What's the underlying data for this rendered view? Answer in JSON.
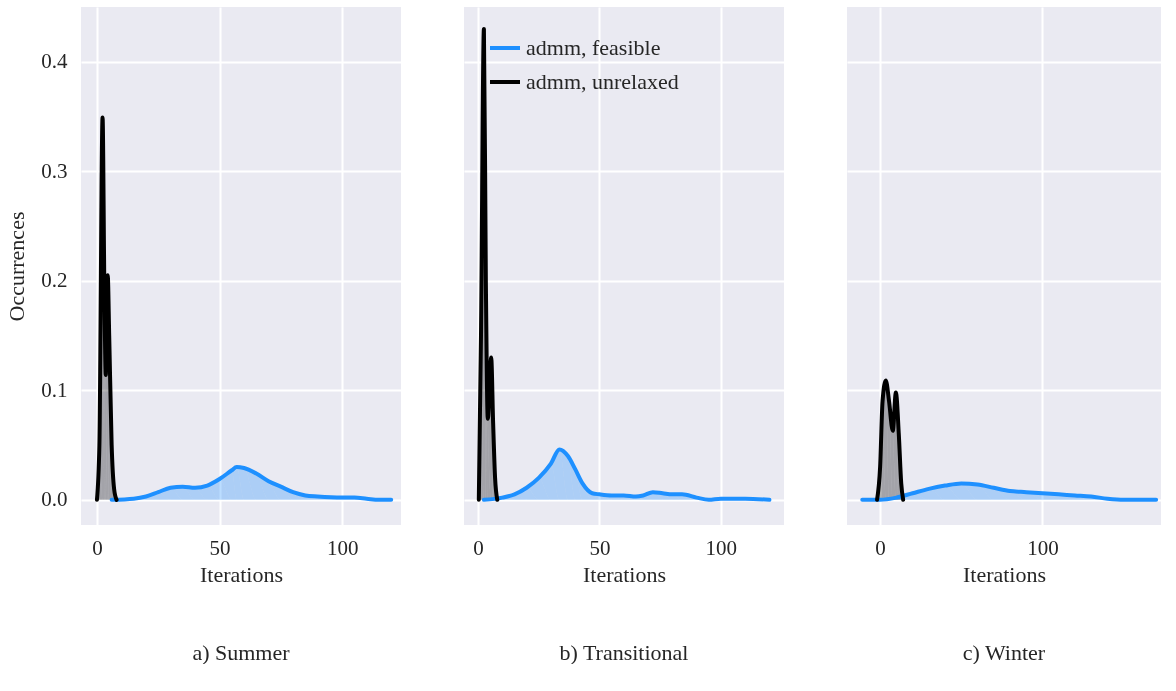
{
  "chart_data": [
    {
      "type": "area",
      "title": "a) Summer",
      "xlabel": "Iterations",
      "ylabel": "Occurrences",
      "xlim": [
        -6.5,
        124
      ],
      "xticks": [
        0,
        50,
        100
      ],
      "ylim": [
        -0.023,
        0.45
      ],
      "yticks": [
        {
          "value": 0,
          "label": "0.0"
        },
        {
          "value": 0.1,
          "label": "0.1"
        },
        {
          "value": 0.2,
          "label": "0.2"
        },
        {
          "value": 0.3,
          "label": "0.3"
        },
        {
          "value": 0.4,
          "label": "0.4"
        }
      ],
      "grid": true,
      "series": [
        {
          "color": "#1e90ff",
          "x": [
            6,
            15,
            20,
            25,
            30,
            35,
            40,
            45,
            50,
            55,
            57,
            60,
            65,
            70,
            75,
            80,
            85,
            90,
            100,
            105,
            110,
            115,
            120
          ],
          "values": [
            0,
            0.001,
            0.003,
            0.007,
            0.011,
            0.012,
            0.011,
            0.013,
            0.019,
            0.027,
            0.03,
            0.029,
            0.024,
            0.017,
            0.012,
            0.007,
            0.004,
            0.003,
            0.002,
            0.002,
            0.001,
            0,
            0
          ]
        },
        {
          "color": "#000000",
          "x": [
            0,
            1,
            2.3,
            3,
            3.6,
            4.4,
            5,
            6,
            7,
            8
          ],
          "values": [
            0,
            0.05,
            0.349,
            0.2,
            0.114,
            0.205,
            0.15,
            0.05,
            0.01,
            0
          ]
        }
      ]
    },
    {
      "type": "area",
      "title": "b) Transitional",
      "xlabel": "Iterations",
      "xlim": [
        -5.8,
        126
      ],
      "xticks": [
        0,
        50,
        100
      ],
      "ylim": [
        -0.023,
        0.45
      ],
      "yticks": [
        0,
        0.1,
        0.2,
        0.3,
        0.4
      ],
      "grid": true,
      "tick_labels": "x",
      "legend": "top left",
      "series": [
        {
          "name": "admm, feasible",
          "color": "#1e90ff",
          "x": [
            2.4,
            10,
            15,
            20,
            25,
            30,
            33.5,
            37,
            40,
            43,
            47,
            50,
            55,
            60,
            65,
            68,
            72,
            76,
            80,
            84,
            90,
            95,
            100,
            110,
            120
          ],
          "values": [
            0,
            0.002,
            0.005,
            0.011,
            0.02,
            0.033,
            0.046,
            0.04,
            0.028,
            0.015,
            0.006,
            0.005,
            0.004,
            0.004,
            0.003,
            0.004,
            0.007,
            0.006,
            0.005,
            0.005,
            0.002,
            0,
            0.001,
            0.001,
            0
          ]
        },
        {
          "name": "admm, unrelaxed",
          "color": "#000000",
          "x": [
            0.3,
            1.2,
            2.4,
            3.2,
            4,
            5.4,
            6.2,
            7,
            7.9
          ],
          "values": [
            0,
            0.15,
            0.43,
            0.2,
            0.074,
            0.13,
            0.07,
            0.02,
            0
          ]
        }
      ]
    },
    {
      "type": "area",
      "title": "c) Winter",
      "xlabel": "Iterations",
      "xlim": [
        -20.4,
        173
      ],
      "xticks": [
        0,
        100
      ],
      "ylim": [
        -0.023,
        0.45
      ],
      "yticks": [
        0,
        0.1,
        0.2,
        0.3,
        0.4
      ],
      "grid": true,
      "tick_labels": "x",
      "series": [
        {
          "color": "#1e90ff",
          "x": [
            -11,
            0,
            10,
            20,
            30,
            40,
            50,
            60,
            70,
            80,
            90,
            100,
            110,
            120,
            130,
            140,
            150,
            170
          ],
          "values": [
            0,
            0,
            0.002,
            0.006,
            0.01,
            0.013,
            0.015,
            0.014,
            0.011,
            0.008,
            0.007,
            0.006,
            0.005,
            0.004,
            0.003,
            0.001,
            0,
            0
          ]
        },
        {
          "color": "#000000",
          "x": [
            -1.9,
            0,
            1.5,
            3.5,
            5.5,
            7.8,
            9.7,
            11.5,
            13,
            14.2
          ],
          "values": [
            0,
            0.03,
            0.09,
            0.109,
            0.09,
            0.063,
            0.098,
            0.06,
            0.015,
            0
          ]
        }
      ]
    }
  ]
}
